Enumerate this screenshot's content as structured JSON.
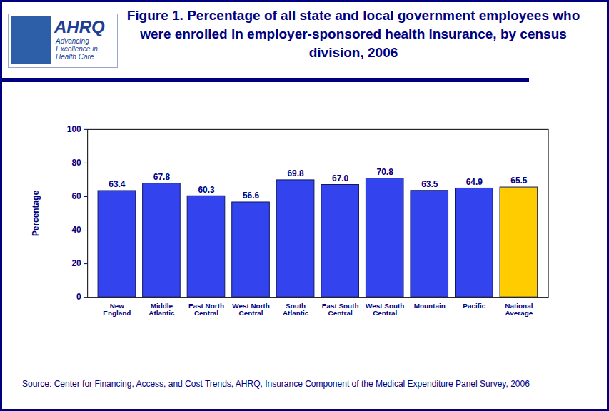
{
  "chart_data": {
    "type": "bar",
    "title": "Figure 1. Percentage of all state and local government employees who were enrolled in employer-sponsored health insurance, by census division, 2006",
    "source": "Source: Center for Financing, Access, and Cost Trends, AHRQ, Insurance Component of the Medical Expenditure Panel Survey, 2006",
    "annotations": [
      "AHRQ",
      "Advancing Excellence in Health Care"
    ],
    "y_label": "Percentage",
    "categories": [
      "New England",
      "Middle Atlantic",
      "East North Central",
      "West North Central",
      "South Atlantic",
      "East South Central",
      "West South Central",
      "Mountain",
      "Pacific",
      "National Average"
    ],
    "values": [
      63.4,
      67.8,
      60.3,
      56.6,
      69.8,
      67.0,
      70.8,
      63.5,
      64.9,
      65.5
    ],
    "value_labels": [
      "63.4",
      "67.8",
      "60.3",
      "56.6",
      "69.8",
      "67.0",
      "70.8",
      "63.5",
      "64.9",
      "65.5"
    ],
    "colors": [
      "#3344ee",
      "#3344ee",
      "#3344ee",
      "#3344ee",
      "#3344ee",
      "#3344ee",
      "#3344ee",
      "#3344ee",
      "#3344ee",
      "#ffcc00"
    ],
    "ylim": [
      0,
      100
    ],
    "yticks": [
      0,
      20,
      40,
      60,
      80,
      100
    ],
    "grid": false,
    "data_labels": true
  }
}
